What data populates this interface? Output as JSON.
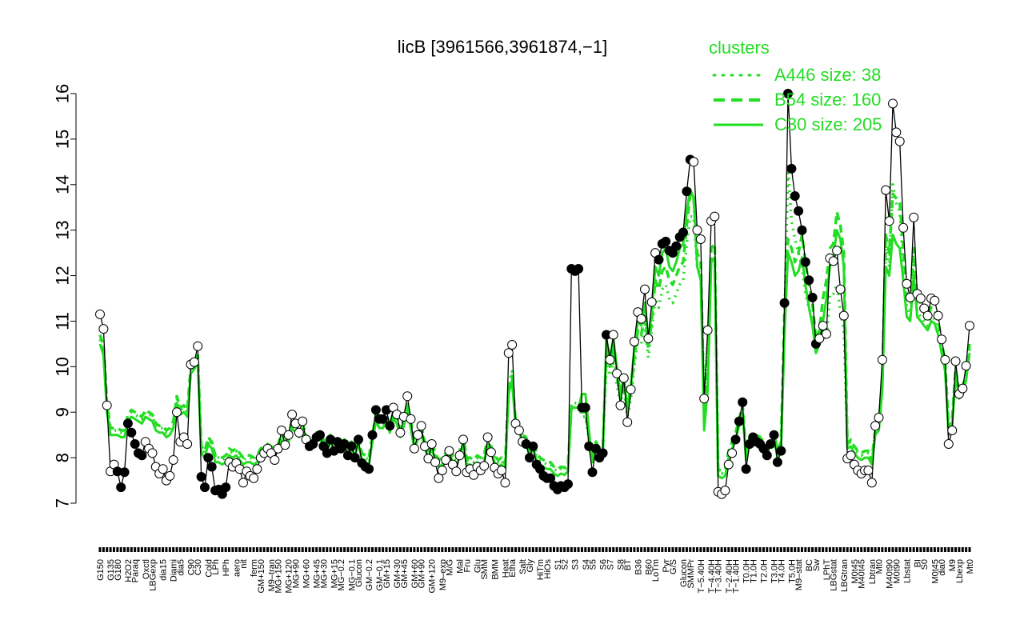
{
  "chart_data": {
    "type": "line",
    "title": "licB [3961566,3961874,−1]",
    "xlabel": "",
    "ylabel": "",
    "ylim": [
      7,
      16
    ],
    "yticks": [
      7,
      8,
      9,
      10,
      11,
      12,
      13,
      14,
      15,
      16
    ],
    "grid": false,
    "legend": {
      "title": "clusters",
      "placement": "top-right",
      "color": "#22dd22",
      "entries": [
        {
          "label": "A446 size: 38",
          "style": "dotted"
        },
        {
          "label": "B54 size: 160",
          "style": "dashed"
        },
        {
          "label": "C30 size: 205",
          "style": "solid"
        }
      ]
    },
    "series_colors": {
      "sample": "#000000",
      "cluster": "#22dd22",
      "filled_point": "#000000",
      "open_point": "#ffffff"
    },
    "xtick_labels": [
      "G150",
      "G135",
      "G180",
      "H2O2",
      "Paraq",
      "Oxctl",
      "LBGexp",
      "dia15",
      "Diami",
      "dia5",
      "C90",
      "C30",
      "Cold",
      "LPh",
      "HPh",
      "aero",
      "nit",
      "ferm",
      "GM+150",
      "M9–tran",
      "MG+150",
      "MG+120",
      "MG+90",
      "MG+60",
      "MG+45",
      "MG+30",
      "MG+15",
      "MG−0.2",
      "MG−0.1",
      "Glucon",
      "GM−0.2",
      "GM−0.1",
      "GM+15",
      "GM+30",
      "GM+45",
      "GM+60",
      "GM+90",
      "GM+120",
      "M9–exp",
      "M/G",
      "Mal",
      "Fru",
      "Glu",
      "SMM",
      "BMM",
      "Heat",
      "Etha",
      "Salt",
      "Gly",
      "HiTm",
      "HiOs",
      "S1",
      "S2",
      "S3",
      "S4",
      "S5",
      "S6",
      "S7",
      "S8",
      "BT",
      "B36",
      "B60",
      "LoTm",
      "Pyr",
      "G/S",
      "Glucon",
      "SMMPr",
      "T−5.40H",
      "T−4.40H",
      "T−3.40H",
      "T−2.40H",
      "T−1.40H",
      "T0.0H",
      "T1.0H",
      "T2.0H",
      "T3.0H",
      "T4.0H",
      "T5.0H",
      "M9–stat",
      "BC",
      "Sw",
      "LPhT",
      "LBGstat",
      "LBGtran",
      "M0t45",
      "M40t45",
      "Lbtran",
      "Mt0",
      "M40t90",
      "M0t90",
      "Lbstat",
      "BI",
      "S0",
      "M0t45",
      "dia0",
      "M9",
      "Lbexp",
      "Mt0"
    ],
    "values": [
      11.15,
      10.83,
      9.15,
      7.7,
      7.85,
      7.7,
      7.35,
      7.68,
      8.75,
      8.55,
      8.3,
      8.1,
      8.05,
      8.35,
      8.2,
      8.1,
      7.8,
      7.65,
      7.75,
      7.5,
      7.6,
      7.95,
      9.0,
      8.35,
      8.45,
      8.3,
      10.05,
      10.1,
      10.45,
      7.58,
      7.35,
      8.0,
      7.8,
      7.28,
      7.3,
      7.2,
      7.35,
      7.9,
      7.8,
      7.88,
      7.75,
      7.45,
      7.7,
      7.6,
      7.55,
      7.75,
      8.0,
      8.1,
      8.2,
      8.1,
      7.95,
      8.2,
      8.6,
      8.28,
      8.5,
      8.95,
      8.75,
      8.55,
      8.8,
      8.4,
      8.25,
      8.3,
      8.45,
      8.5,
      8.25,
      8.1,
      8.4,
      8.15,
      8.35,
      8.2,
      8.3,
      8.05,
      8.25,
      8.0,
      8.4,
      7.88,
      7.8,
      7.75,
      8.5,
      9.05,
      8.85,
      8.85,
      9.05,
      8.7,
      9.1,
      8.95,
      8.55,
      8.9,
      9.35,
      8.85,
      8.2,
      8.5,
      8.7,
      8.25,
      7.98,
      8.3,
      7.9,
      7.55,
      7.72,
      7.95,
      8.15,
      7.85,
      7.7,
      8.05,
      8.4,
      7.68,
      7.75,
      7.62,
      7.8,
      7.72,
      7.82,
      8.45,
      8.12,
      7.78,
      7.65,
      7.72,
      7.45,
      10.3,
      10.48,
      8.75,
      8.6,
      8.35,
      8.3,
      8.0,
      8.25,
      7.85,
      7.75,
      7.6,
      7.55,
      7.55,
      7.38,
      7.3,
      7.38,
      7.35,
      7.42,
      12.15,
      12.1,
      12.15,
      9.1,
      9.1,
      8.25,
      7.68,
      8.2,
      8.0,
      8.1,
      10.7,
      10.15,
      10.7,
      9.85,
      9.15,
      9.75,
      8.78,
      9.5,
      10.55,
      11.2,
      11.05,
      11.7,
      10.62,
      11.42,
      12.5,
      12.35,
      12.7,
      12.75,
      12.55,
      12.5,
      12.65,
      12.85,
      12.95,
      13.85,
      14.55,
      14.5,
      13.0,
      12.8,
      9.3,
      10.8,
      13.2,
      13.3,
      7.25,
      7.2,
      7.28,
      7.85,
      8.1,
      8.4,
      8.8,
      9.22,
      7.75,
      8.3,
      8.45,
      8.35,
      8.3,
      8.2,
      8.05,
      8.3,
      8.5,
      7.9,
      8.15,
      11.4,
      16.0,
      14.35,
      13.75,
      13.42,
      13.0,
      12.3,
      11.9,
      11.52,
      10.5,
      10.62,
      10.9,
      10.72,
      12.38,
      12.32,
      12.55,
      11.7,
      11.12,
      7.98,
      8.05,
      7.85,
      7.72,
      7.65,
      7.72,
      7.72,
      7.45,
      8.7,
      8.88,
      10.15,
      13.88,
      13.2,
      15.78,
      15.15,
      14.95,
      13.05,
      11.82,
      11.52,
      13.28,
      11.6,
      11.5,
      11.28,
      11.12,
      11.5,
      11.45,
      11.12,
      10.6,
      10.15,
      8.3,
      8.6,
      10.12,
      9.4,
      9.52,
      10.02,
      10.9
    ],
    "point_fill": "oooooffffffffooooooooooooooooffffffffoooooooooooooooooooooooffffffffffffffffffffffffooooooooooooooooooooooooooooooooooooooffffffffffffffffffffffffooooooooooooooffffffffffooooooooooooffffffffffffffffffffffffoooooooooooooooooooooooooooooooooooooooooooooooooooooffffffffffff",
    "series": [
      {
        "values": [
          10.6,
          10.35,
          9.1,
          8.6,
          8.6,
          8.6,
          8.55,
          8.55,
          8.9,
          9.0,
          8.95,
          8.9,
          8.85,
          9.0,
          8.95,
          8.9,
          8.7,
          8.65,
          8.65,
          8.55,
          8.6,
          8.75,
          9.3,
          9.05,
          9.1,
          9.0,
          9.95,
          10.05,
          10.2,
          8.2,
          8.1,
          8.4,
          8.3,
          8.0,
          8.0,
          7.95,
          8.0,
          8.15,
          8.1,
          8.15,
          8.05,
          7.95,
          8.0,
          8.0,
          7.95,
          8.0,
          8.15,
          8.2,
          8.25,
          8.2,
          8.15,
          8.25,
          8.5,
          8.3,
          8.45,
          8.75,
          8.65,
          8.55,
          8.7,
          8.45,
          8.35,
          8.4,
          8.5,
          8.5,
          8.35,
          8.25,
          8.45,
          8.25,
          8.4,
          8.3,
          8.35,
          8.2,
          8.3,
          8.15,
          8.4,
          8.05,
          8.0,
          7.95,
          8.45,
          8.9,
          8.75,
          8.75,
          8.9,
          8.65,
          8.95,
          8.85,
          8.55,
          8.8,
          9.15,
          8.75,
          8.3,
          8.5,
          8.65,
          8.3,
          8.1,
          8.3,
          8.05,
          7.9,
          7.95,
          8.05,
          8.2,
          8.0,
          7.95,
          8.1,
          8.4,
          7.95,
          7.95,
          7.9,
          8.0,
          7.95,
          8.0,
          8.4,
          8.2,
          8.0,
          7.9,
          7.95,
          7.8,
          9.6,
          9.9,
          8.75,
          8.65,
          8.45,
          8.4,
          8.15,
          8.3,
          8.05,
          7.95,
          7.9,
          7.85,
          7.85,
          7.75,
          7.7,
          7.75,
          7.72,
          7.8,
          9.2,
          9.2,
          9.2,
          8.9,
          8.9,
          8.4,
          8.0,
          8.3,
          8.15,
          8.2,
          10.1,
          9.8,
          10.1,
          9.6,
          9.2,
          9.5,
          8.9,
          9.3,
          10.0,
          10.6,
          10.5,
          11.0,
          10.2,
          10.8,
          11.5,
          11.3,
          11.7,
          11.8,
          11.5,
          11.4,
          11.6,
          11.8,
          11.9,
          12.7,
          13.3,
          13.3,
          12.2,
          12.0,
          9.4,
          10.3,
          12.3,
          12.4,
          7.7,
          7.65,
          7.7,
          8.1,
          8.3,
          8.5,
          8.8,
          9.1,
          8.05,
          8.4,
          8.5,
          8.45,
          8.4,
          8.3,
          8.2,
          8.4,
          8.5,
          8.1,
          8.3,
          10.9,
          14.4,
          13.2,
          12.8,
          12.5,
          12.2,
          11.6,
          11.3,
          11.0,
          10.4,
          10.5,
          10.7,
          10.6,
          11.6,
          11.6,
          11.8,
          11.2,
          10.8,
          8.3,
          8.35,
          8.2,
          8.1,
          8.05,
          8.1,
          8.1,
          7.9,
          8.6,
          8.7,
          9.6,
          12.6,
          12.2,
          14.0,
          13.6,
          13.4,
          12.2,
          11.3,
          11.1,
          12.3,
          11.2,
          11.1,
          11.0,
          10.9,
          11.1,
          11.05,
          10.8,
          10.4,
          10.0,
          8.6,
          8.8,
          9.9,
          9.4,
          9.5,
          9.8,
          10.4
        ],
        "style": "dotted"
      },
      {
        "values": [
          10.7,
          10.45,
          9.2,
          8.65,
          8.65,
          8.65,
          8.6,
          8.6,
          8.95,
          9.05,
          9.0,
          8.95,
          8.9,
          9.05,
          9.0,
          8.95,
          8.75,
          8.7,
          8.7,
          8.6,
          8.65,
          8.8,
          9.35,
          9.1,
          9.15,
          9.05,
          10.0,
          10.1,
          10.25,
          8.25,
          8.15,
          8.45,
          8.35,
          8.05,
          8.05,
          8.0,
          8.05,
          8.2,
          8.15,
          8.2,
          8.1,
          8.0,
          8.05,
          8.05,
          8.0,
          8.05,
          8.2,
          8.25,
          8.3,
          8.25,
          8.2,
          8.3,
          8.55,
          8.35,
          8.5,
          8.8,
          8.7,
          8.6,
          8.75,
          8.5,
          8.4,
          8.45,
          8.55,
          8.55,
          8.4,
          8.3,
          8.5,
          8.3,
          8.45,
          8.35,
          8.4,
          8.25,
          8.35,
          8.2,
          8.45,
          8.1,
          8.05,
          8.0,
          8.5,
          8.95,
          8.8,
          8.8,
          8.95,
          8.7,
          9.0,
          8.9,
          8.6,
          8.85,
          9.2,
          8.8,
          8.35,
          8.55,
          8.7,
          8.35,
          8.15,
          8.35,
          8.1,
          7.95,
          8.0,
          8.1,
          8.25,
          8.05,
          8.0,
          8.15,
          8.45,
          8.0,
          8.0,
          7.95,
          8.05,
          8.0,
          8.05,
          8.45,
          8.25,
          8.05,
          7.95,
          8.0,
          7.85,
          9.5,
          9.8,
          8.8,
          8.7,
          8.5,
          8.45,
          8.2,
          8.35,
          8.1,
          8.0,
          7.95,
          7.9,
          7.9,
          7.8,
          7.75,
          7.8,
          7.78,
          7.85,
          9.1,
          9.1,
          9.1,
          9.0,
          9.0,
          8.5,
          8.05,
          8.35,
          8.2,
          8.25,
          10.4,
          10.0,
          10.4,
          9.8,
          9.3,
          9.65,
          9.0,
          9.45,
          10.2,
          10.8,
          10.7,
          11.2,
          10.4,
          11.0,
          11.9,
          11.7,
          12.1,
          12.2,
          11.9,
          11.8,
          12.0,
          12.2,
          12.3,
          13.1,
          13.8,
          13.7,
          12.5,
          12.3,
          8.9,
          9.9,
          12.6,
          12.7,
          7.75,
          7.7,
          7.75,
          8.15,
          8.35,
          8.55,
          8.85,
          9.15,
          8.1,
          8.45,
          8.55,
          8.5,
          8.45,
          8.35,
          8.25,
          8.45,
          8.55,
          8.15,
          8.35,
          11.2,
          12.8,
          12.6,
          12.3,
          12.5,
          12.9,
          12.3,
          11.8,
          11.4,
          10.6,
          10.8,
          11.5,
          11.9,
          12.6,
          12.7,
          13.4,
          13.1,
          12.5,
          8.3,
          8.4,
          8.25,
          8.15,
          8.1,
          8.15,
          8.15,
          7.95,
          8.65,
          8.75,
          9.7,
          12.9,
          12.5,
          13.8,
          13.7,
          13.6,
          12.6,
          11.6,
          11.4,
          12.6,
          11.5,
          11.4,
          11.2,
          11.1,
          11.3,
          11.25,
          11.0,
          10.55,
          10.1,
          8.65,
          8.85,
          9.95,
          9.45,
          9.55,
          9.85,
          10.5
        ],
        "style": "dashed"
      },
      {
        "values": [
          10.5,
          10.25,
          9.0,
          8.5,
          8.5,
          8.5,
          8.45,
          8.45,
          8.8,
          8.9,
          8.85,
          8.8,
          8.75,
          8.9,
          8.85,
          8.8,
          8.6,
          8.55,
          8.55,
          8.45,
          8.5,
          8.65,
          9.2,
          8.95,
          9.0,
          8.9,
          9.85,
          9.95,
          10.1,
          8.1,
          8.0,
          8.3,
          8.2,
          7.9,
          7.9,
          7.85,
          7.9,
          8.05,
          8.0,
          8.05,
          7.95,
          7.85,
          7.9,
          7.9,
          7.85,
          7.9,
          8.05,
          8.1,
          8.15,
          8.1,
          8.05,
          8.15,
          8.4,
          8.2,
          8.35,
          8.65,
          8.55,
          8.45,
          8.6,
          8.35,
          8.25,
          8.3,
          8.4,
          8.4,
          8.25,
          8.15,
          8.35,
          8.15,
          8.3,
          8.2,
          8.25,
          8.1,
          8.2,
          8.05,
          8.3,
          7.95,
          7.9,
          7.85,
          8.35,
          8.8,
          8.65,
          8.65,
          8.8,
          8.55,
          8.85,
          8.75,
          8.45,
          8.7,
          9.05,
          8.65,
          8.2,
          8.4,
          8.55,
          8.2,
          8.0,
          8.2,
          7.95,
          7.8,
          7.85,
          7.95,
          8.1,
          7.9,
          7.85,
          8.0,
          8.3,
          7.85,
          7.85,
          7.8,
          7.9,
          7.85,
          7.9,
          8.3,
          8.1,
          7.9,
          7.8,
          7.85,
          7.7,
          9.4,
          9.7,
          8.65,
          8.55,
          8.35,
          8.3,
          8.05,
          8.2,
          7.95,
          7.85,
          7.8,
          7.75,
          7.75,
          7.65,
          7.6,
          7.65,
          7.62,
          7.7,
          9.1,
          9.1,
          9.1,
          9.4,
          9.4,
          8.6,
          7.9,
          8.2,
          8.05,
          8.1,
          10.6,
          10.2,
          10.6,
          10.0,
          9.4,
          9.8,
          9.1,
          9.6,
          10.4,
          11.0,
          10.9,
          11.4,
          10.6,
          11.2,
          12.2,
          12.0,
          12.5,
          12.6,
          12.2,
          12.1,
          12.3,
          12.6,
          12.7,
          13.4,
          13.9,
          13.7,
          12.2,
          11.9,
          8.6,
          9.5,
          12.3,
          12.4,
          7.6,
          7.55,
          7.6,
          8.0,
          8.2,
          8.4,
          8.7,
          9.0,
          7.95,
          8.3,
          8.4,
          8.35,
          8.3,
          8.2,
          8.1,
          8.3,
          8.4,
          8.0,
          8.2,
          10.7,
          12.5,
          12.3,
          12.0,
          12.1,
          12.4,
          11.8,
          11.3,
          10.9,
          10.3,
          10.5,
          11.0,
          11.5,
          12.2,
          12.4,
          13.0,
          12.8,
          12.2,
          8.2,
          8.25,
          8.1,
          8.0,
          7.95,
          8.0,
          8.0,
          7.85,
          8.5,
          8.6,
          9.5,
          12.2,
          12.0,
          12.9,
          12.7,
          12.6,
          11.9,
          11.1,
          11.0,
          12.0,
          11.1,
          11.0,
          10.9,
          10.8,
          11.0,
          10.95,
          10.7,
          10.3,
          9.9,
          8.5,
          8.7,
          9.8,
          9.3,
          9.4,
          9.7,
          10.3
        ],
        "style": "solid"
      }
    ]
  }
}
